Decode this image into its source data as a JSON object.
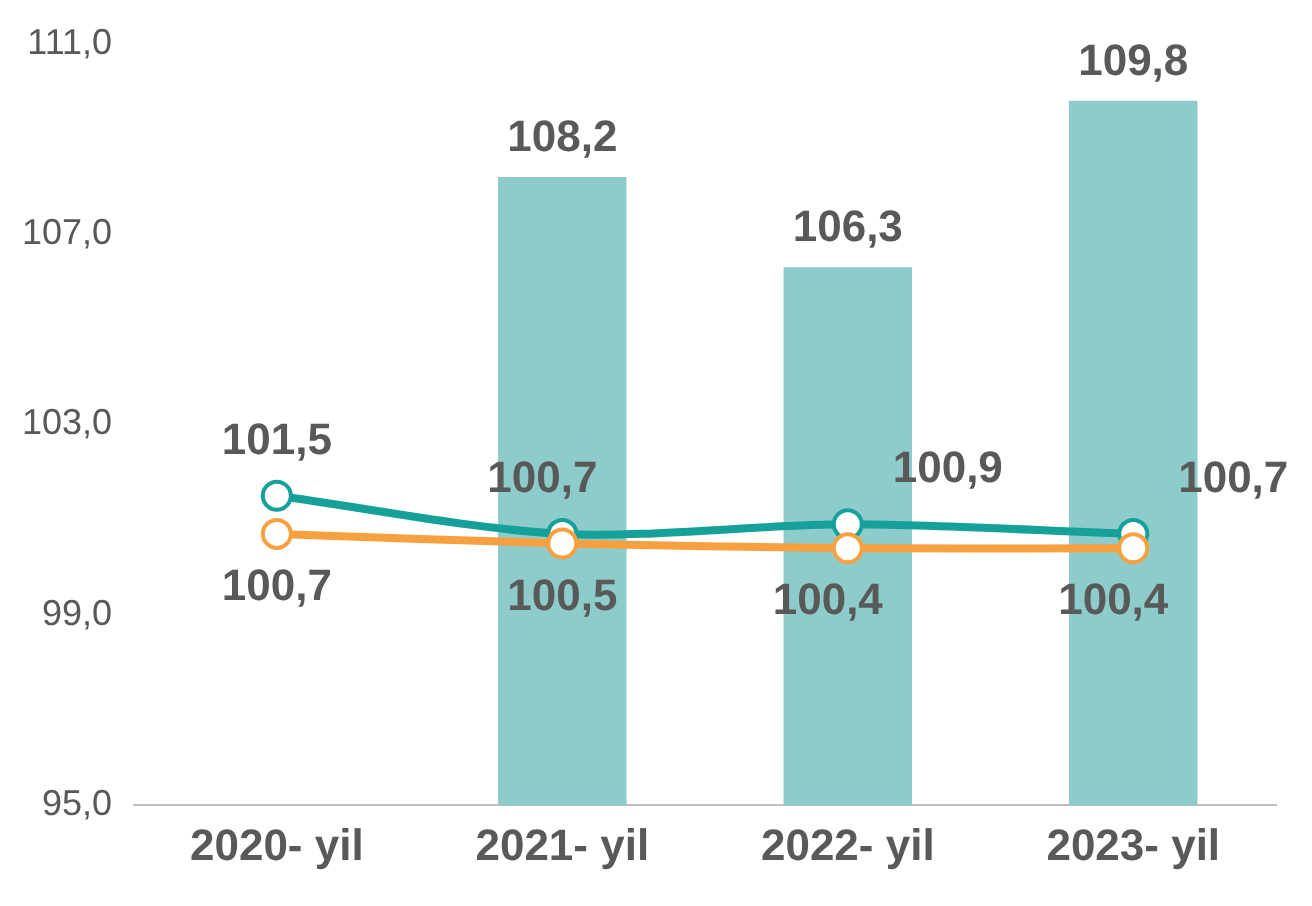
{
  "chart_data": {
    "type": "bar",
    "categories": [
      "2020- yil",
      "2021- yil",
      "2022- yil",
      "2023- yil"
    ],
    "series": [
      {
        "color": "#8ecbcb",
        "values": [
          null,
          108.2,
          106.3,
          109.8
        ],
        "value_labels": [
          null,
          "108,2",
          "106,3",
          "109,8"
        ]
      },
      {
        "type": "line",
        "color": "#15a09a",
        "marker": "circle",
        "values": [
          101.5,
          100.7,
          100.9,
          100.7
        ],
        "value_labels": [
          "101,5",
          "100,7",
          "100,9",
          "100,7"
        ]
      },
      {
        "type": "line",
        "color": "#f7a040",
        "marker": "circle",
        "values": [
          100.7,
          100.5,
          100.4,
          100.4
        ],
        "value_labels": [
          "100,7",
          "100,5",
          "100,4",
          "100,4"
        ]
      }
    ],
    "ylim": [
      95,
      111
    ],
    "yticks": [
      {
        "value": 95,
        "label": "95,0"
      },
      {
        "value": 99,
        "label": "99,0"
      },
      {
        "value": 103,
        "label": "103,0"
      },
      {
        "value": 107,
        "label": "107,0"
      },
      {
        "value": 111,
        "label": "111,0"
      }
    ],
    "grid": false,
    "legend": false
  }
}
